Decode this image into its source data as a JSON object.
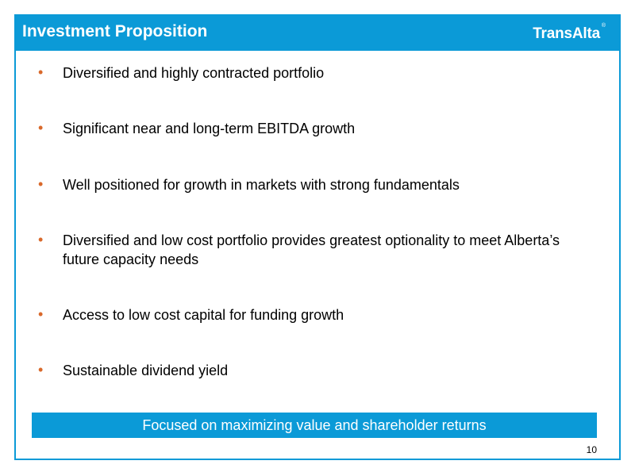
{
  "header": {
    "title": "Investment Proposition",
    "logo": "TransAlta",
    "logo_mark": "®"
  },
  "bullets": [
    {
      "marker": "•",
      "text": "Diversified and highly contracted portfolio"
    },
    {
      "marker": "•",
      "text": "Significant near and long-term EBITDA growth"
    },
    {
      "marker": "•",
      "text": "Well positioned for growth in markets with strong fundamentals"
    },
    {
      "marker": "•",
      "text": "Diversified and low cost portfolio provides greatest optionality to meet Alberta’s future capacity needs"
    },
    {
      "marker": "•",
      "text": "Access to low cost capital for funding growth"
    },
    {
      "marker": "•",
      "text": "Sustainable dividend yield"
    }
  ],
  "banner": {
    "text": "Focused on maximizing value and shareholder returns"
  },
  "page_number": "10",
  "colors": {
    "accent": "#0b9ad7",
    "bullet": "#d9692b",
    "text": "#000000"
  }
}
